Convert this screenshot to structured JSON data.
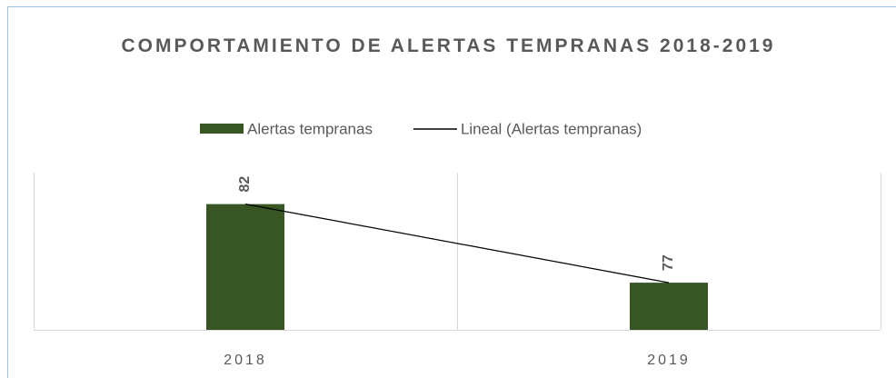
{
  "chart_data": {
    "type": "bar",
    "title": "COMPORTAMIENTO DE ALERTAS TEMPRANAS 2018-2019",
    "categories": [
      "2018",
      "2019"
    ],
    "series": [
      {
        "name": "Alertas tempranas",
        "type": "bar",
        "color": "#375623",
        "values": [
          82,
          77
        ]
      },
      {
        "name": "Lineal (Alertas tempranas)",
        "type": "line",
        "color": "#000000",
        "values": [
          82,
          77
        ]
      }
    ],
    "ylim": [
      74,
      84
    ],
    "grid": true
  }
}
